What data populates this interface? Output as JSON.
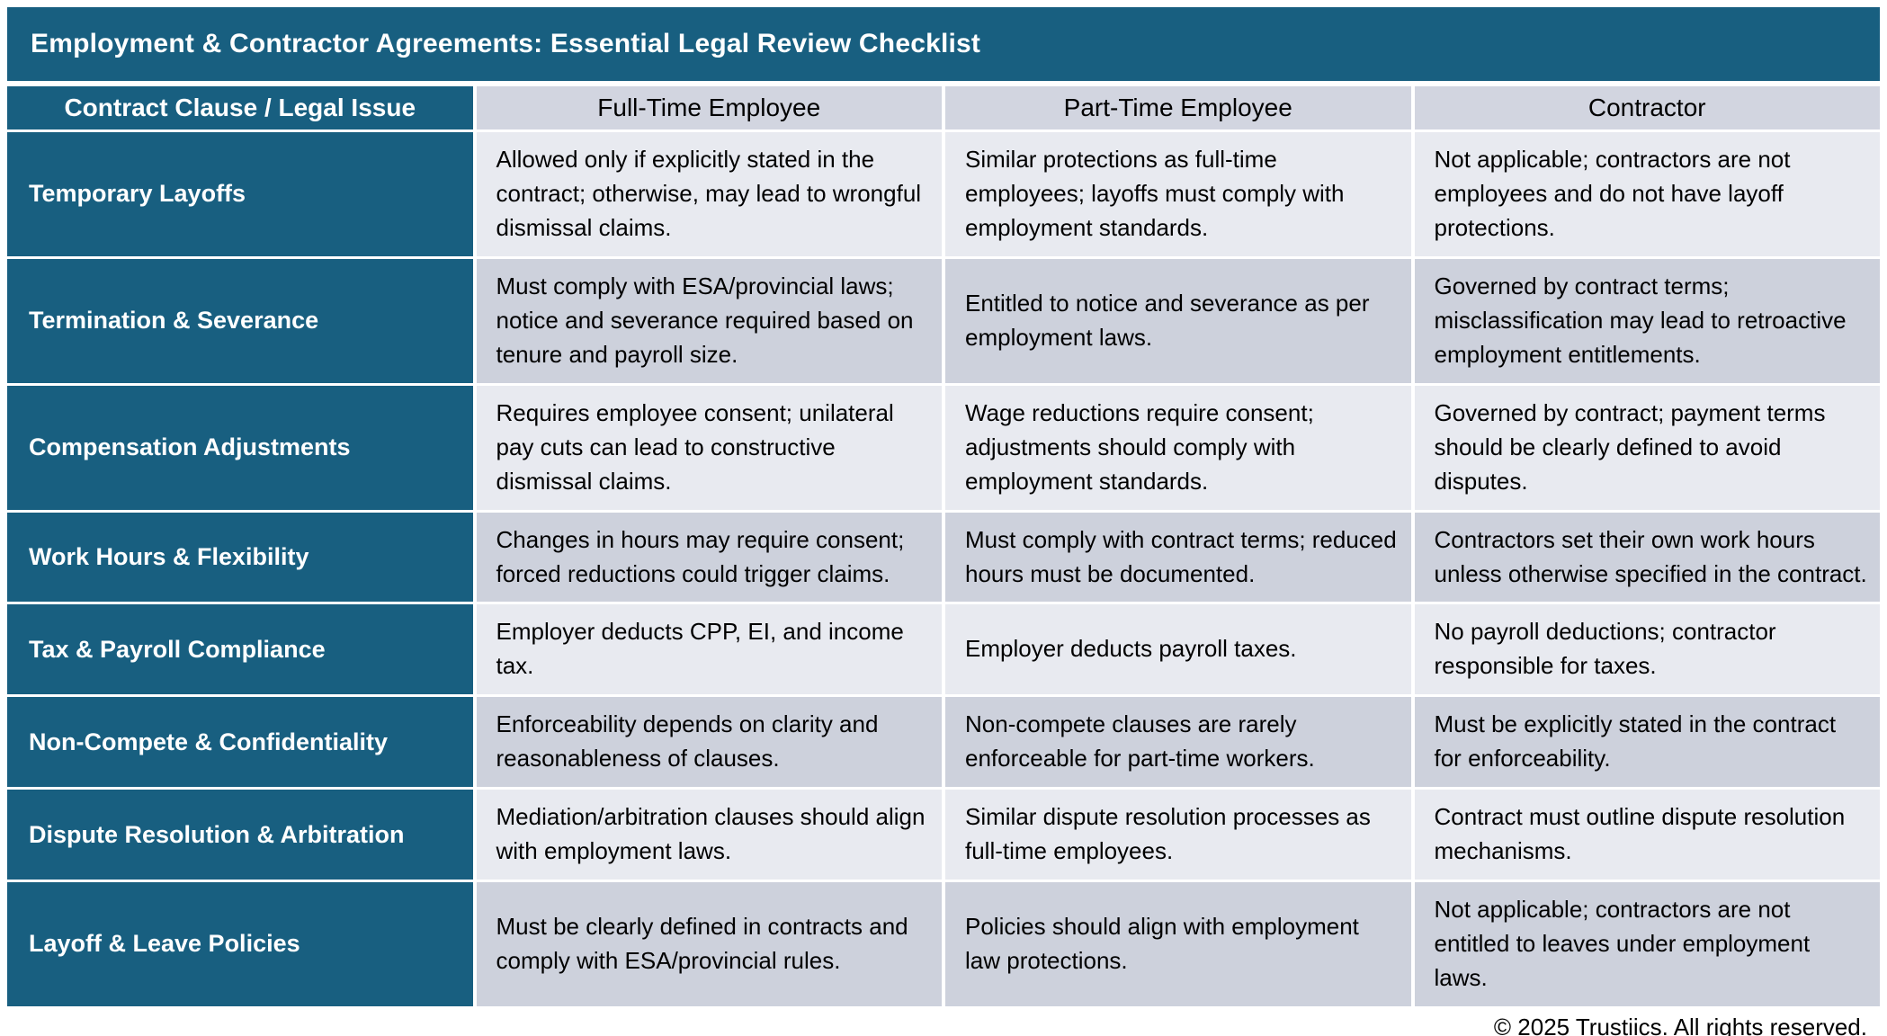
{
  "title": "Employment & Contractor Agreements: Essential Legal Review Checklist",
  "table": {
    "headers": [
      "Contract Clause / Legal Issue",
      "Full-Time Employee",
      "Part-Time Employee",
      "Contractor"
    ],
    "rows": [
      {
        "issue": "Temporary Layoffs",
        "full_time": "Allowed only if explicitly stated in the contract; otherwise, may lead to wrongful dismissal claims.",
        "part_time": "Similar protections as full-time employees; layoffs must comply with employment standards.",
        "contractor": "Not applicable; contractors are not employees and do not have layoff protections."
      },
      {
        "issue": "Termination & Severance",
        "full_time": "Must comply with ESA/provincial laws; notice and severance required based on tenure and payroll size.",
        "part_time": "Entitled to notice and severance as per employment laws.",
        "contractor": "Governed by contract terms; misclassification may lead to retroactive employment entitlements."
      },
      {
        "issue": "Compensation Adjustments",
        "full_time": "Requires employee consent; unilateral pay cuts can lead to constructive dismissal claims.",
        "part_time": "Wage reductions require consent; adjustments should comply with employment standards.",
        "contractor": "Governed by contract; payment terms should be clearly defined to avoid disputes."
      },
      {
        "issue": "Work Hours & Flexibility",
        "full_time": "Changes in hours may require consent; forced reductions could trigger claims.",
        "part_time": "Must comply with contract terms; reduced hours must be documented.",
        "contractor": "Contractors set their own work hours unless otherwise specified in the contract."
      },
      {
        "issue": "Tax & Payroll Compliance",
        "full_time": "Employer deducts CPP, EI, and income tax.",
        "part_time": "Employer deducts payroll taxes.",
        "contractor": "No payroll deductions; contractor responsible for taxes."
      },
      {
        "issue": "Non-Compete & Confidentiality",
        "full_time": "Enforceability depends on clarity and reasonableness of clauses.",
        "part_time": "Non-compete clauses are rarely enforceable for part-time workers.",
        "contractor": "Must be explicitly stated in the contract for enforceability."
      },
      {
        "issue": "Dispute Resolution & Arbitration",
        "full_time": "Mediation/arbitration clauses should align with employment laws.",
        "part_time": "Similar dispute resolution processes as full-time employees.",
        "contractor": "Contract must outline dispute resolution mechanisms."
      },
      {
        "issue": "Layoff & Leave Policies",
        "full_time": "Must be clearly defined in contracts and comply with ESA/provincial rules.",
        "part_time": "Policies should align with employment law protections.",
        "contractor": "Not applicable; contractors are not entitled to leaves under employment laws."
      }
    ]
  },
  "footer": "© 2025 Trustiics. All rights reserved.",
  "colors": {
    "teal": "#185F80",
    "header_cell": "#D2D5E0",
    "row_light": "#E8EAF0",
    "row_dark": "#CDD1DC",
    "title_text": "#FFFFFF",
    "body_text": "#000000"
  }
}
